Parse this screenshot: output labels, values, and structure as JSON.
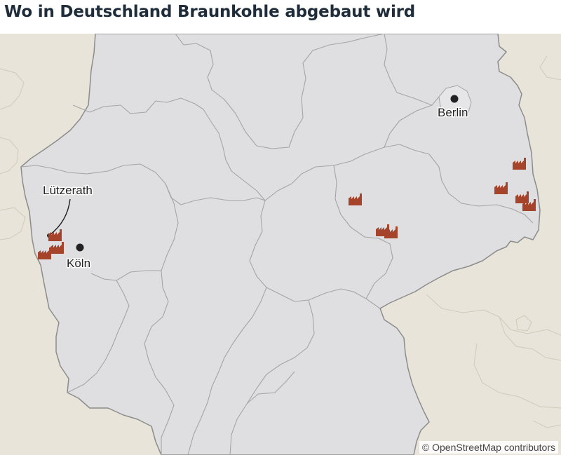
{
  "title": "Wo in Deutschland Braunkohle abgebaut wird",
  "attribution": "© OpenStreetMap contributors",
  "colors": {
    "germany_fill": "#dfdfe1",
    "neighbor_fill": "#e8e4d9",
    "border_national": "#8c8c8c",
    "border_state": "#a5a5a5",
    "mine_icon": "#a5432b",
    "city_dot": "#222222"
  },
  "labels": {
    "berlin": "Berlin",
    "koeln": "Köln",
    "luetzerath": "Lützerath"
  },
  "legend_icon": "factory-icon"
}
